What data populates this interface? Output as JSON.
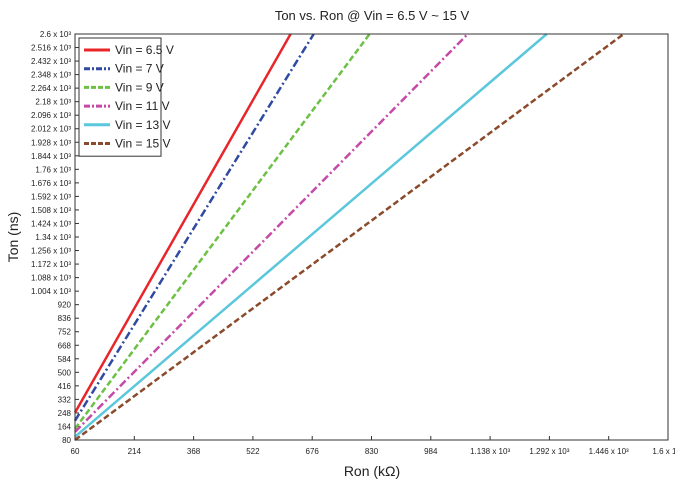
{
  "chart_data": {
    "type": "line",
    "title": "Ton vs. Ron @ Vin = 6.5 V ~ 15 V",
    "xlabel": "Ron (kΩ)",
    "ylabel": "Ton (ns)",
    "xlim": [
      60,
      1600
    ],
    "ylim": [
      80,
      2600
    ],
    "grid": false,
    "legend_position": "top-left",
    "x_ticks": [
      60,
      214,
      368,
      522,
      676,
      830,
      984,
      1138,
      1292,
      1446,
      1600
    ],
    "x_tick_labels": [
      "60",
      "214",
      "368",
      "522",
      "676",
      "830",
      "984",
      "1.138 x 10³",
      "1.292 x 10³",
      "1.446 x 10³",
      "1.6 x 10³"
    ],
    "y_ticks": [
      80,
      164,
      248,
      332,
      416,
      500,
      584,
      668,
      752,
      836,
      920,
      1004,
      1088,
      1172,
      1256,
      1340,
      1424,
      1508,
      1592,
      1676,
      1760,
      1844,
      1928,
      2012,
      2096,
      2180,
      2264,
      2348,
      2432,
      2516,
      2600
    ],
    "y_tick_labels": [
      "80",
      "164",
      "248",
      "332",
      "416",
      "500",
      "584",
      "668",
      "752",
      "836",
      "920",
      "1.004 x 10³",
      "1.088 x 10³",
      "1.172 x 10³",
      "1.256 x 10³",
      "1.34 x 10³",
      "1.424 x 10³",
      "1.508 x 10³",
      "1.592 x 10³",
      "1.676 x 10³",
      "1.76 x 10³",
      "1.844 x 10³",
      "1.928 x 10³",
      "2.012 x 10³",
      "2.096 x 10³",
      "2.18 x 10³",
      "2.264 x 10³",
      "2.348 x 10³",
      "2.432 x 10³",
      "2.516 x 10³",
      "2.6 x 10³"
    ],
    "series": [
      {
        "name": "Vin = 6.5 V",
        "color": "#e8262a",
        "dash": "solid",
        "x": [
          60,
          620
        ],
        "y": [
          250,
          2600
        ]
      },
      {
        "name": "Vin = 7 V",
        "color": "#2f4aa0",
        "dash": "dashdot",
        "x": [
          60,
          680
        ],
        "y": [
          200,
          2600
        ]
      },
      {
        "name": "Vin = 9 V",
        "color": "#6cc043",
        "dash": "dashed",
        "x": [
          60,
          825
        ],
        "y": [
          150,
          2600
        ]
      },
      {
        "name": "Vin = 11 V",
        "color": "#c54aa8",
        "dash": "dashdot",
        "x": [
          60,
          1080
        ],
        "y": [
          130,
          2600
        ]
      },
      {
        "name": "Vin = 13 V",
        "color": "#5bc7dc",
        "dash": "solid",
        "x": [
          60,
          1285
        ],
        "y": [
          100,
          2600
        ]
      },
      {
        "name": "Vin = 15 V",
        "color": "#8b4a2b",
        "dash": "dashed",
        "x": [
          60,
          1485
        ],
        "y": [
          80,
          2600
        ]
      }
    ]
  }
}
